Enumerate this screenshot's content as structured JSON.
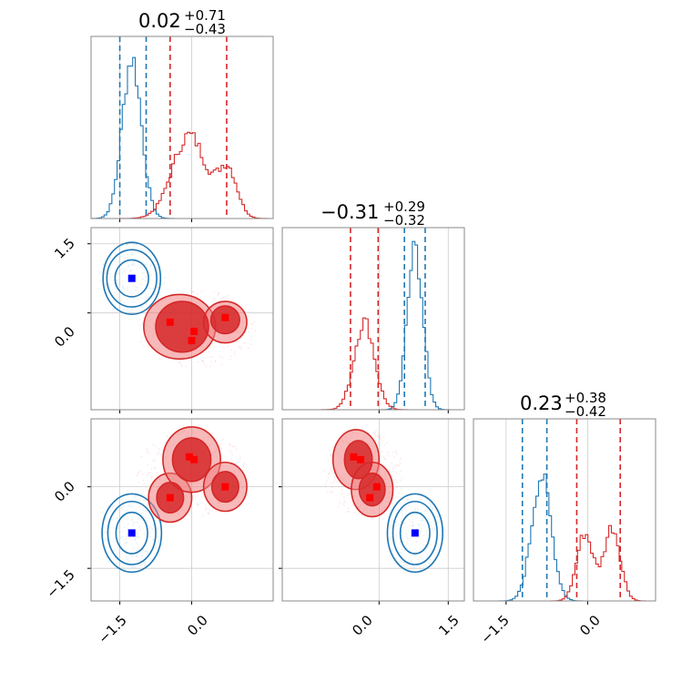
{
  "chart_data": {
    "type": "corner",
    "parameters": 3,
    "grid": true,
    "colors": {
      "blue": "#1f77b4",
      "red": "#d62728",
      "blue_marker": "#0000ff",
      "red_marker": "#ff0000"
    },
    "titles": [
      {
        "value": "0.02",
        "upper": "+0.71",
        "lower": "−0.43"
      },
      {
        "value": "−0.31",
        "upper": "+0.29",
        "lower": "−0.32"
      },
      {
        "value": "0.23",
        "upper": "+0.38",
        "lower": "−0.42"
      }
    ],
    "axes_ranges": [
      [
        -2.1,
        1.7
      ],
      [
        -2.1,
        1.85
      ],
      [
        -2.1,
        1.25
      ]
    ],
    "x_ticks": [
      {
        "values": [
          -1.5,
          0.0
        ],
        "labels": [
          "−1.5",
          "0.0"
        ]
      },
      {
        "values": [
          0.0,
          1.5
        ],
        "labels": [
          "0.0",
          "1.5"
        ]
      },
      {
        "values": [
          -1.5,
          0.0
        ],
        "labels": [
          "−1.5",
          "0.0"
        ]
      }
    ],
    "y_ticks": [
      {
        "values": [
          0.0,
          1.5
        ],
        "labels": [
          "0.0",
          "1.5"
        ]
      },
      {
        "values": [
          -1.5,
          0.0
        ],
        "labels": [
          "−1.5",
          "0.0"
        ]
      }
    ],
    "quantile_lines": {
      "blue": [
        [
          -1.5,
          -0.95
        ],
        [
          0.55,
          1.0
        ],
        [
          -1.2,
          -0.75
        ]
      ],
      "red": [
        [
          -0.45,
          0.73
        ],
        [
          -0.62,
          -0.02
        ],
        [
          -0.2,
          0.6
        ]
      ]
    },
    "histograms": {
      "blue": [
        {
          "center": -1.25,
          "sigma": 0.2,
          "peak": 1.0
        }
      ],
      "red": [
        {
          "center": -0.05,
          "sigma": 0.35,
          "peak": 0.52
        },
        {
          "center": 0.75,
          "sigma": 0.2,
          "peak": 0.3
        }
      ]
    },
    "histograms_p2": {
      "blue": [
        {
          "center": 0.78,
          "sigma": 0.17,
          "peak": 1.0
        }
      ],
      "red": [
        {
          "center": -0.32,
          "sigma": 0.22,
          "peak": 0.55
        }
      ]
    },
    "histograms_p3": {
      "blue": [
        {
          "center": -0.85,
          "sigma": 0.18,
          "peak": 0.78
        }
      ],
      "red": [
        {
          "center": -0.05,
          "sigma": 0.15,
          "peak": 0.42
        },
        {
          "center": 0.45,
          "sigma": 0.15,
          "peak": 0.46
        }
      ]
    },
    "markers": {
      "p1_p2": {
        "blue": [
          [
            -1.25,
            0.75
          ]
        ],
        "red": [
          [
            -0.45,
            -0.2
          ],
          [
            0.05,
            -0.4
          ],
          [
            0.0,
            -0.6
          ],
          [
            0.7,
            -0.1
          ]
        ]
      },
      "p1_p3": {
        "blue": [
          [
            -1.25,
            -0.85
          ]
        ],
        "red": [
          [
            -0.45,
            -0.2
          ],
          [
            -0.05,
            0.55
          ],
          [
            0.05,
            0.5
          ],
          [
            0.7,
            0.0
          ]
        ]
      },
      "p2_p3": {
        "blue": [
          [
            0.78,
            -0.85
          ]
        ],
        "red": [
          [
            -0.55,
            0.55
          ],
          [
            -0.4,
            0.5
          ],
          [
            -0.05,
            0.0
          ],
          [
            -0.2,
            -0.2
          ]
        ]
      }
    }
  }
}
